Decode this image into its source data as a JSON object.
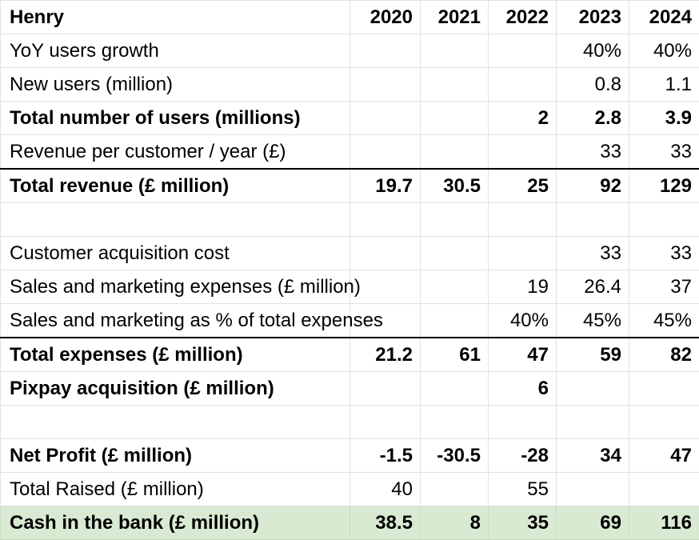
{
  "header": {
    "title": "Henry",
    "years": [
      "2020",
      "2021",
      "2022",
      "2023",
      "2024"
    ]
  },
  "rows": [
    {
      "label": "YoY users growth",
      "values": [
        "",
        "",
        "",
        "40%",
        "40%"
      ]
    },
    {
      "label": "New users (million)",
      "values": [
        "",
        "",
        "",
        "0.8",
        "1.1"
      ]
    },
    {
      "label": "Total number of users (millions)",
      "values": [
        "",
        "",
        "2",
        "2.8",
        "3.9"
      ]
    },
    {
      "label": "Revenue per customer / year (£)",
      "values": [
        "",
        "",
        "",
        "33",
        "33"
      ]
    },
    {
      "label": "Total revenue (£ million)",
      "values": [
        "19.7",
        "30.5",
        "25",
        "92",
        "129"
      ]
    },
    {
      "label": "",
      "values": [
        "",
        "",
        "",
        "",
        ""
      ]
    },
    {
      "label": "Customer acquisition cost",
      "values": [
        "",
        "",
        "",
        "33",
        "33"
      ]
    },
    {
      "label": "Sales and marketing expenses (£ million)",
      "values": [
        "",
        "",
        "19",
        "26.4",
        "37"
      ]
    },
    {
      "label": "Sales and marketing as % of total expenses",
      "values": [
        "",
        "",
        "40%",
        "45%",
        "45%"
      ]
    },
    {
      "label": "Total expenses (£ million)",
      "values": [
        "21.2",
        "61",
        "47",
        "59",
        "82"
      ]
    },
    {
      "label": "Pixpay acquisition (£ million)",
      "values": [
        "",
        "",
        "6",
        "",
        ""
      ]
    },
    {
      "label": "",
      "values": [
        "",
        "",
        "",
        "",
        ""
      ]
    },
    {
      "label": "Net Profit (£ million)",
      "values": [
        "-1.5",
        "-30.5",
        "-28",
        "34",
        "47"
      ]
    },
    {
      "label": "Total Raised (£ million)",
      "values": [
        "40",
        "",
        "55",
        "",
        ""
      ]
    },
    {
      "label": "Cash in the bank (£ million)",
      "values": [
        "38.5",
        "8",
        "35",
        "69",
        "116"
      ]
    }
  ],
  "colors": {
    "highlight_row": "#d9ead3",
    "grid": "#e2e2e2",
    "rule": "#000000"
  }
}
